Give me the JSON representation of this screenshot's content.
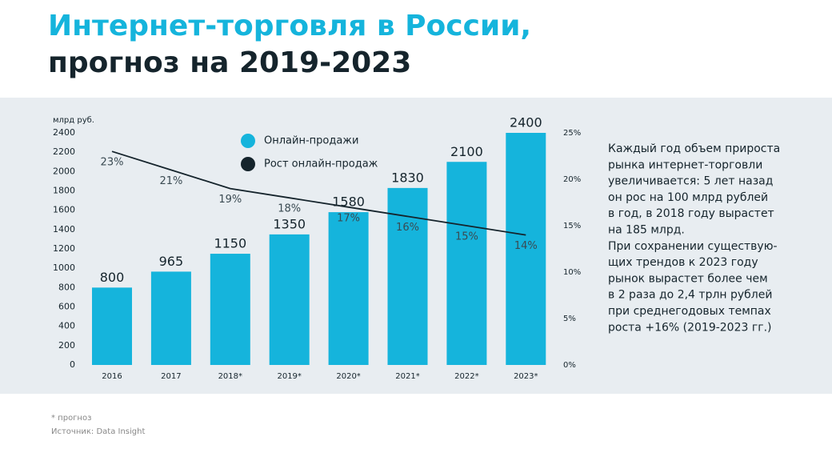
{
  "chart_data": {
    "type": "bar",
    "title": "Интернет-торговля в России,",
    "subtitle": "прогноз на 2019-2023",
    "y_label": "млрд руб.",
    "categories": [
      "2016",
      "2017",
      "2018*",
      "2019*",
      "2020*",
      "2021*",
      "2022*",
      "2023*"
    ],
    "series": [
      {
        "name": "Онлайн-продажи",
        "color": "#15b4dc",
        "values": [
          800,
          965,
          1150,
          1350,
          1580,
          1830,
          2100,
          2400
        ]
      },
      {
        "name": "Рост онлайн-продаж",
        "color": "#15242c",
        "type": "line",
        "axis": "y2",
        "values": [
          23,
          21,
          19,
          18,
          17,
          16,
          15,
          14
        ],
        "value_labels": [
          "23%",
          "21%",
          "19%",
          "18%",
          "17%",
          "16%",
          "15%",
          "14%"
        ]
      }
    ],
    "ylim": [
      0,
      2400
    ],
    "yticks": [
      0,
      200,
      400,
      600,
      800,
      1000,
      1200,
      1400,
      1600,
      1800,
      2000,
      2200,
      2400
    ],
    "y2lim": [
      0,
      25
    ],
    "y2ticks": [
      {
        "value": 0,
        "label": "0%"
      },
      {
        "value": 5,
        "label": "5%"
      },
      {
        "value": 10,
        "label": "10%"
      },
      {
        "value": 15,
        "label": "15%"
      },
      {
        "value": 20,
        "label": "20%"
      },
      {
        "value": 25,
        "label": "25%"
      }
    ],
    "grid": false,
    "legend": "top",
    "note_lines": [
      "Каждый год объем прироста",
      "рынка интернет-торговли",
      "увеличивается: 5 лет назад",
      "он рос на 100 млрд рублей",
      "в год, в 2018 году вырастет",
      "на 185 млрд.",
      "При сохранении существую-",
      "щих трендов  к 2023 году",
      "рынок вырастет более чем",
      "в 2 раза до  2,4 трлн рублей",
      "при среднегодовых темпах",
      "роста +16% (2019-2023 гг.)"
    ],
    "footnotes": [
      "* прогноз",
      "Источник: Data Insight"
    ]
  }
}
